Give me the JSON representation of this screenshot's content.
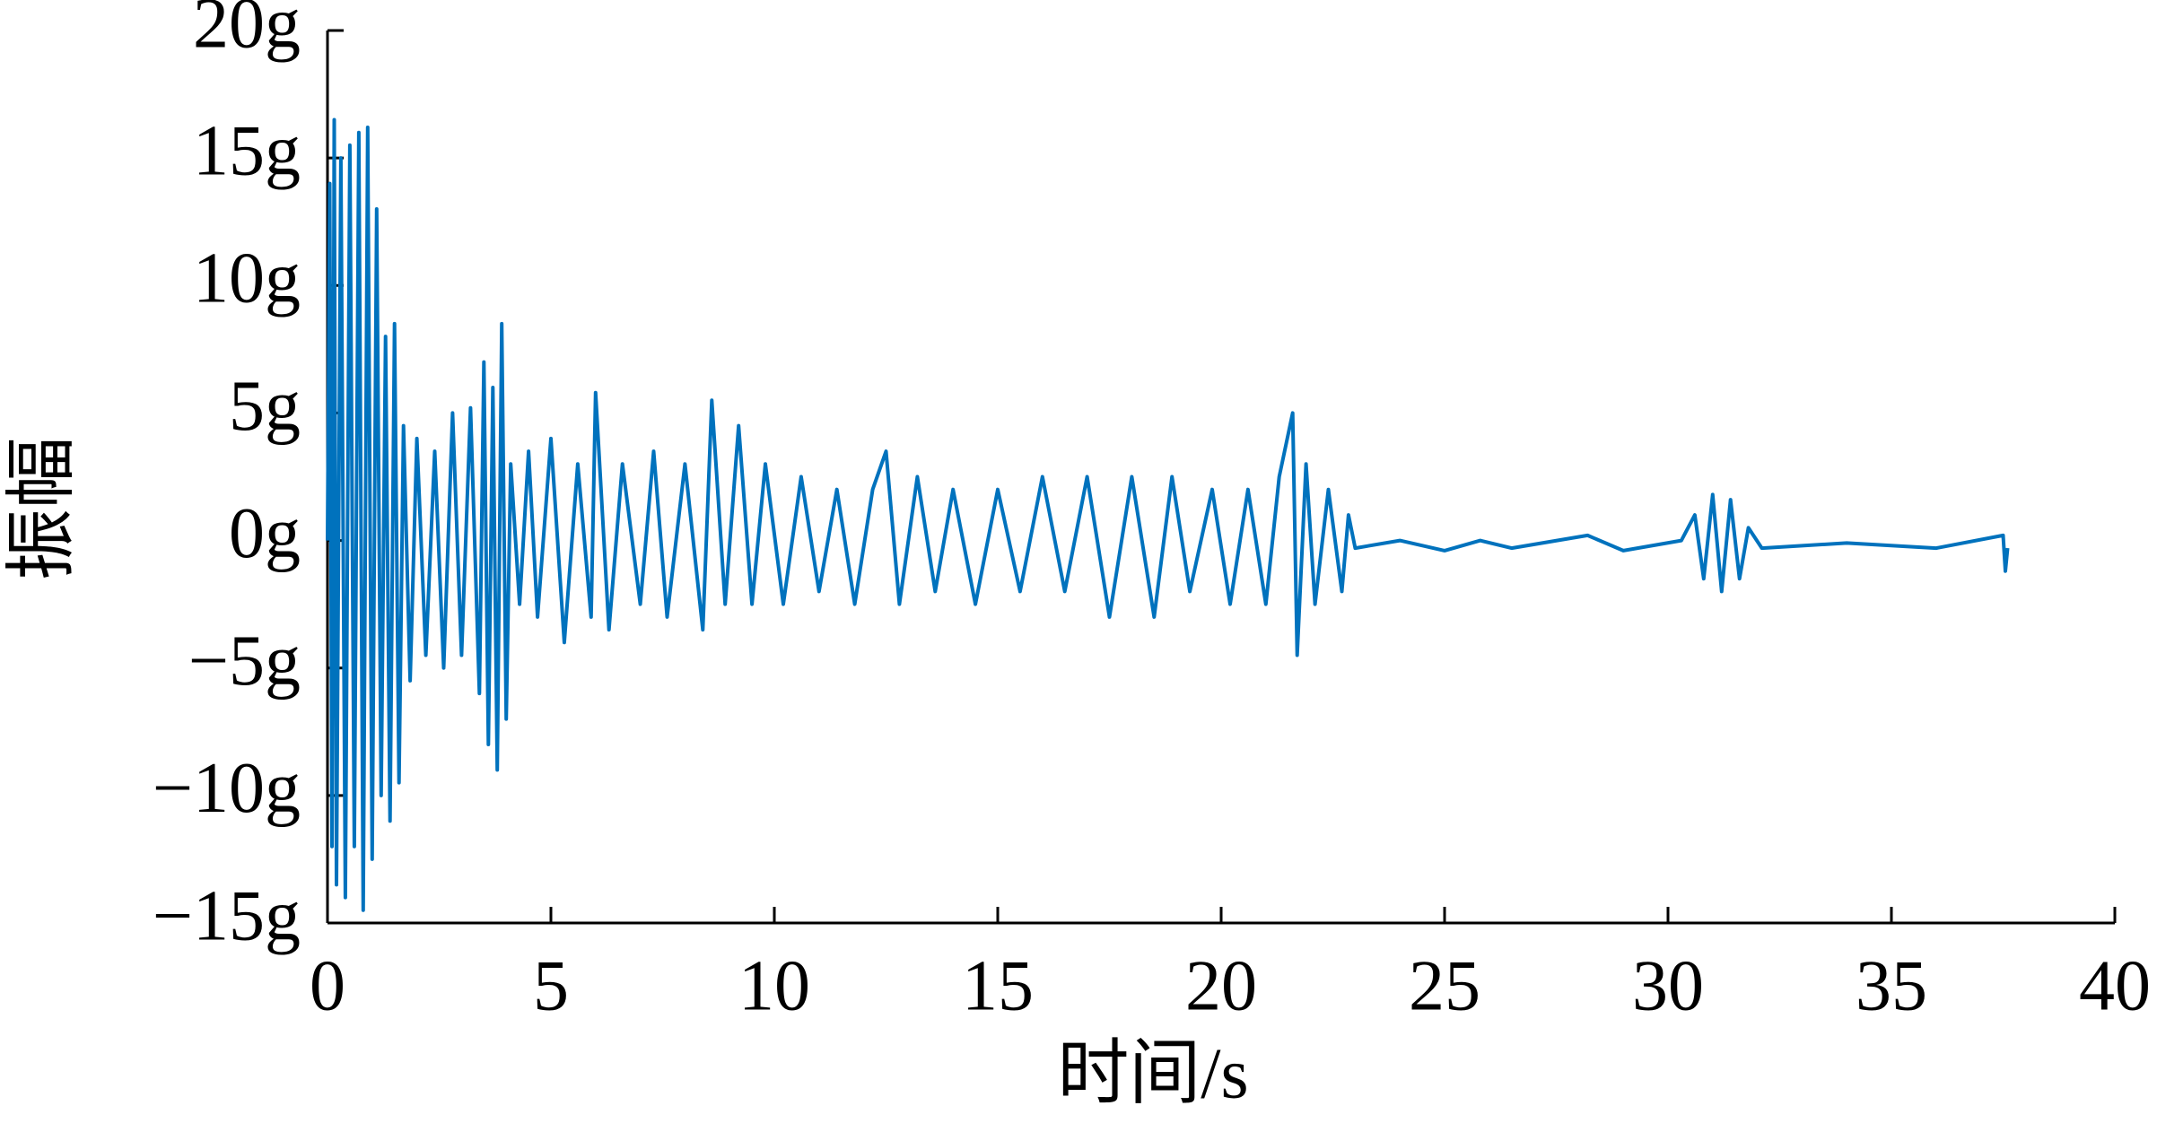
{
  "chart_data": {
    "type": "line",
    "x_label": "时间/s",
    "y_label": "振幅",
    "xlim": [
      0,
      40
    ],
    "ylim": [
      -15,
      20
    ],
    "xticks": [
      0,
      5,
      10,
      15,
      20,
      25,
      30,
      35,
      40
    ],
    "yticks": [
      {
        "value": 20,
        "label": "20g"
      },
      {
        "value": 15,
        "label": "15g"
      },
      {
        "value": 10,
        "label": "10g"
      },
      {
        "value": 5,
        "label": "5g"
      },
      {
        "value": 0,
        "label": "0g"
      },
      {
        "value": -5,
        "label": "−5g"
      },
      {
        "value": -10,
        "label": "−10g"
      },
      {
        "value": -15,
        "label": "−15g"
      }
    ],
    "color": "#0072bd",
    "x": [
      0,
      0.05,
      0.1,
      0.15,
      0.2,
      0.3,
      0.4,
      0.5,
      0.6,
      0.7,
      0.8,
      0.9,
      1.0,
      1.1,
      1.2,
      1.3,
      1.4,
      1.5,
      1.6,
      1.7,
      1.85,
      2.0,
      2.2,
      2.4,
      2.6,
      2.8,
      3.0,
      3.2,
      3.4,
      3.5,
      3.6,
      3.7,
      3.8,
      3.9,
      4.0,
      4.1,
      4.3,
      4.5,
      4.7,
      5.0,
      5.3,
      5.6,
      5.9,
      6.0,
      6.3,
      6.6,
      7.0,
      7.3,
      7.6,
      8.0,
      8.4,
      8.6,
      8.9,
      9.2,
      9.5,
      9.8,
      10.2,
      10.6,
      11.0,
      11.4,
      11.8,
      12.2,
      12.5,
      12.8,
      13.2,
      13.6,
      14.0,
      14.5,
      15.0,
      15.5,
      16.0,
      16.5,
      17.0,
      17.5,
      18.0,
      18.5,
      18.9,
      19.3,
      19.8,
      20.2,
      20.6,
      21.0,
      21.3,
      21.6,
      21.7,
      21.9,
      22.1,
      22.4,
      22.7,
      22.85,
      23.0,
      24.0,
      25.0,
      25.8,
      26.5,
      28.2,
      29.0,
      30.3,
      30.6,
      30.8,
      31.0,
      31.2,
      31.4,
      31.6,
      31.8,
      32.1,
      34.0,
      36.0,
      37.5,
      37.55,
      37.6
    ],
    "values": [
      0,
      14,
      -12,
      16.5,
      -13.5,
      15,
      -14,
      15.5,
      -12,
      16,
      -14.5,
      16.2,
      -12.5,
      13,
      -10,
      8,
      -11,
      8.5,
      -9.5,
      4.5,
      -5.5,
      4,
      -4.5,
      3.5,
      -5,
      5,
      -4.5,
      5.2,
      -6,
      7,
      -8,
      6,
      -9,
      8.5,
      -7,
      3,
      -2.5,
      3.5,
      -3,
      4,
      -4,
      3,
      -3,
      5.8,
      -3.5,
      3,
      -2.5,
      3.5,
      -3,
      3,
      -3.5,
      5.5,
      -2.5,
      4.5,
      -2.5,
      3,
      -2.5,
      2.5,
      -2,
      2,
      -2.5,
      2,
      3.5,
      -2.5,
      2.5,
      -2,
      2,
      -2.5,
      2,
      -2,
      2.5,
      -2,
      2.5,
      -3,
      2.5,
      -3,
      2.5,
      -2,
      2,
      -2.5,
      2,
      -2.5,
      2.5,
      5,
      -4.5,
      3,
      -2.5,
      2,
      -2,
      1,
      -0.3,
      0,
      -0.4,
      0,
      -0.3,
      0.2,
      -0.4,
      0,
      1,
      -1.5,
      1.8,
      -2,
      1.6,
      -1.5,
      0.5,
      -0.3,
      -0.1,
      -0.3,
      0.2,
      -1.2,
      -0.3
    ]
  }
}
